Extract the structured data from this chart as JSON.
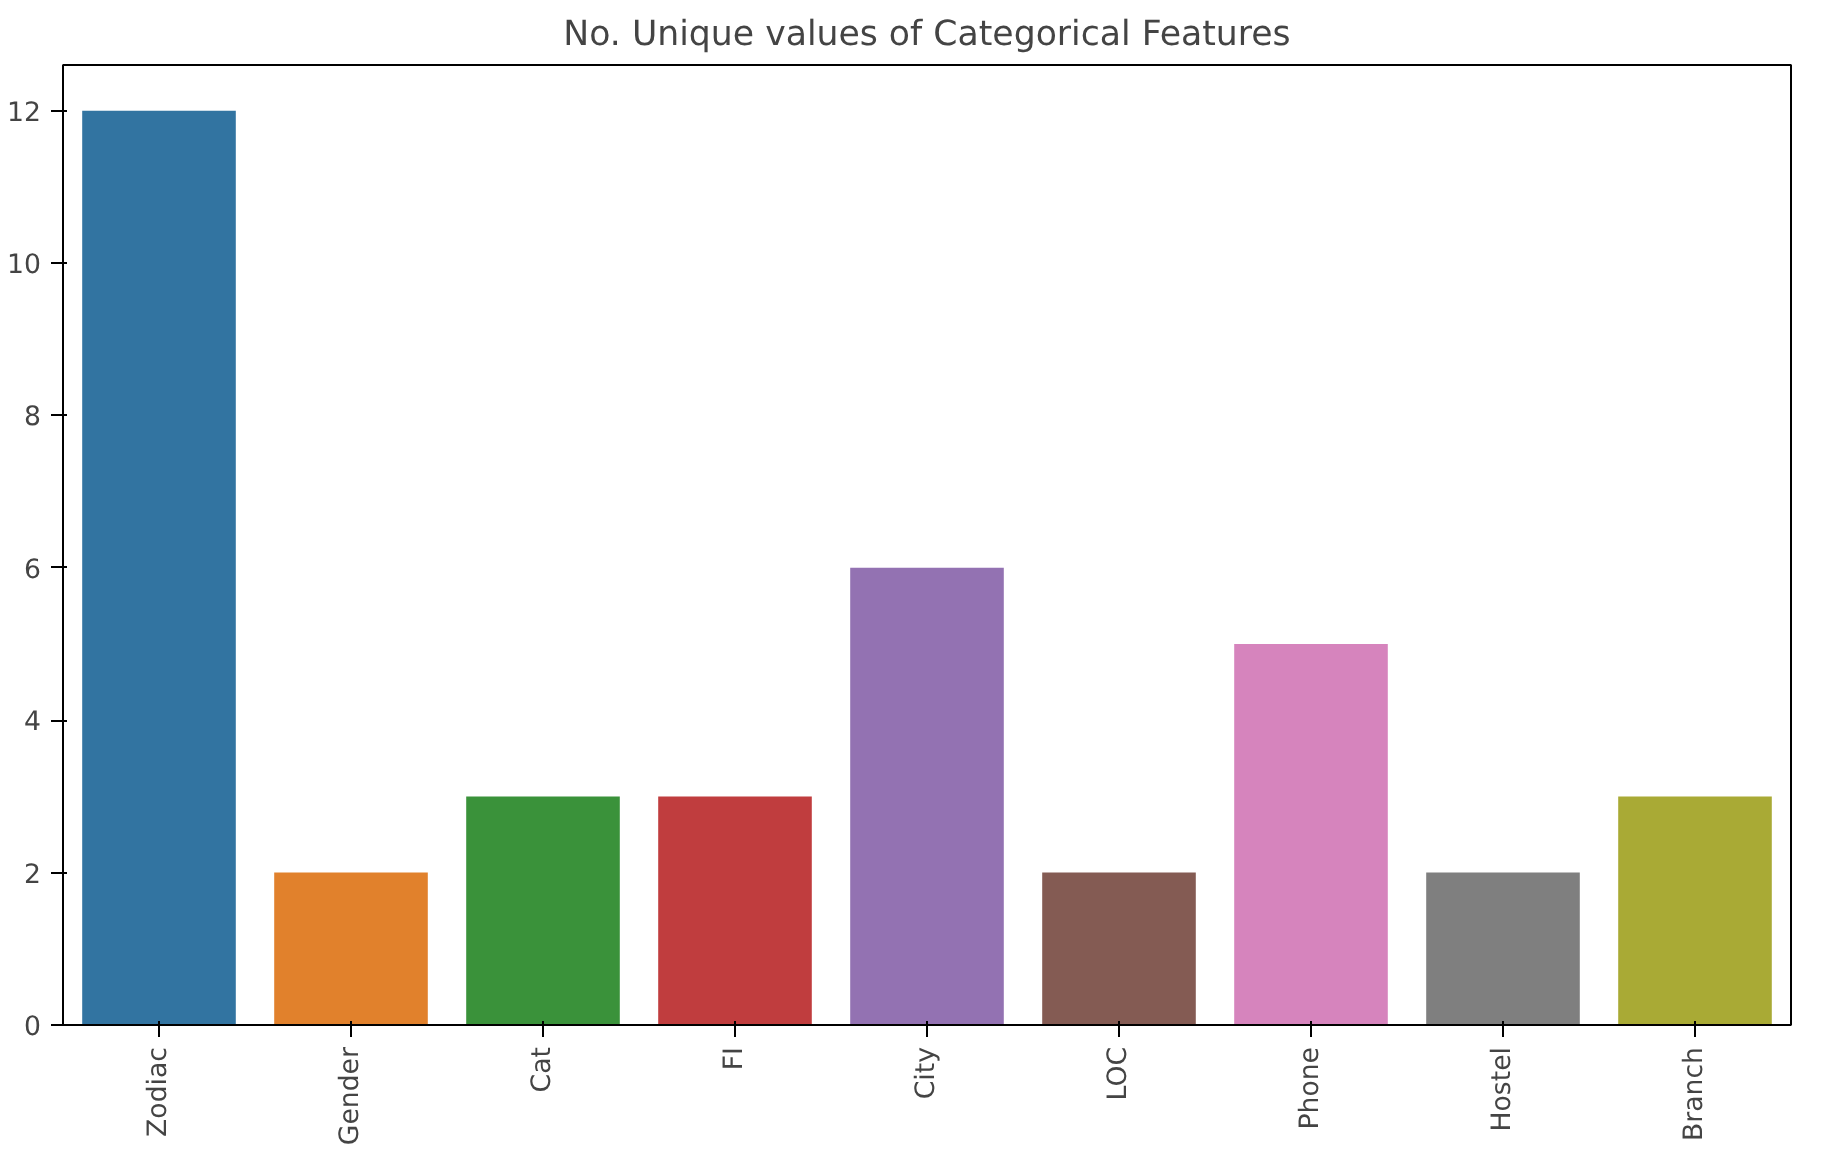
{
  "chart_data": {
    "type": "bar",
    "title": "No. Unique values of Categorical Features",
    "categories": [
      "Zodiac",
      "Gender",
      "Cat",
      "FI",
      "City",
      "LOC",
      "Phone",
      "Hostel",
      "Branch"
    ],
    "values": [
      12,
      2,
      3,
      3,
      6,
      2,
      5,
      2,
      3
    ],
    "colors": [
      "#3274a1",
      "#e1812c",
      "#3a923a",
      "#c03d3e",
      "#9372b2",
      "#845b53",
      "#d684bd",
      "#7f7f7f",
      "#a9aa35"
    ],
    "ylim": [
      0,
      12.6
    ],
    "yticks": [
      0,
      2,
      4,
      6,
      8,
      10,
      12
    ],
    "grid": false
  }
}
